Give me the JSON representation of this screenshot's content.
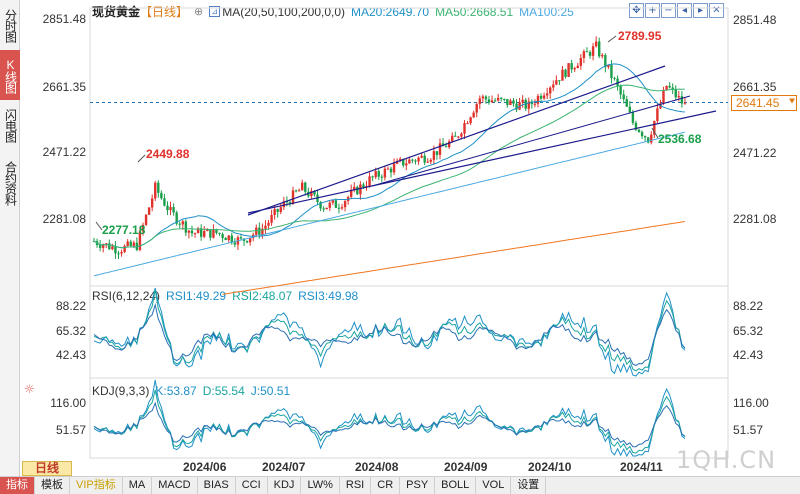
{
  "side_tabs": [
    "分时图",
    "K线图",
    "闪电图",
    "合约资料"
  ],
  "main": {
    "title": "现货黄金",
    "period": "【日线】",
    "ma_label": "MA(20,50,100,200,0,0)",
    "ma20": "MA20:2649.70",
    "ma50": "MA50:2668.51",
    "ma100": "MA100:25",
    "y_ticks_right": [
      "2851.48",
      "2661.35",
      "2471.22",
      "2281.08"
    ],
    "y_ticks_left": [
      "2851.48",
      "2661.35",
      "2471.22",
      "2281.08"
    ],
    "current_price": "2641.45",
    "annotations": {
      "high": "2789.95",
      "low_recent": "2536.68",
      "mid_high": "2449.88",
      "low_start": "2277.18"
    }
  },
  "rsi": {
    "label": "RSI(6,12,24)",
    "rsi1": "RSI1:49.29",
    "rsi2": "RSI2:48.07",
    "rsi3": "RSI3:49.98",
    "y_ticks": [
      "88.22",
      "65.32",
      "42.43"
    ]
  },
  "kdj": {
    "label": "KDJ(9,3,3)",
    "k": "K:53.87",
    "d": "D:55.54",
    "j": "J:50.51",
    "y_ticks": [
      "116.00",
      "51.57"
    ]
  },
  "dates": [
    "2024/06",
    "2024/07",
    "2024/08",
    "2024/09",
    "2024/10",
    "2024/11"
  ],
  "period_button": "日线",
  "bottom_tabs": [
    "指标",
    "模板",
    "VIP指标",
    "MA",
    "MACD",
    "BIAS",
    "CCI",
    "KDJ",
    "LW%",
    "RSI",
    "CR",
    "PSY",
    "BOLL",
    "VOL",
    "设置"
  ],
  "watermark": "1QH.CN",
  "colors": {
    "up": "#e0312b",
    "down": "#1a9e4a",
    "ma20": "#1e90c8",
    "ma50": "#3cb371",
    "ma100": "#4aa8e0",
    "ma200": "#f07820",
    "trend": "#1a1a8c"
  },
  "chart_data": {
    "type": "candlestick",
    "y_range": [
      2200,
      2880
    ],
    "period_highs": {
      "high": 2789.95,
      "recent_low": 2536.68,
      "july_high": 2449.88,
      "june_low": 2277.18
    },
    "current": 2641.45
  }
}
